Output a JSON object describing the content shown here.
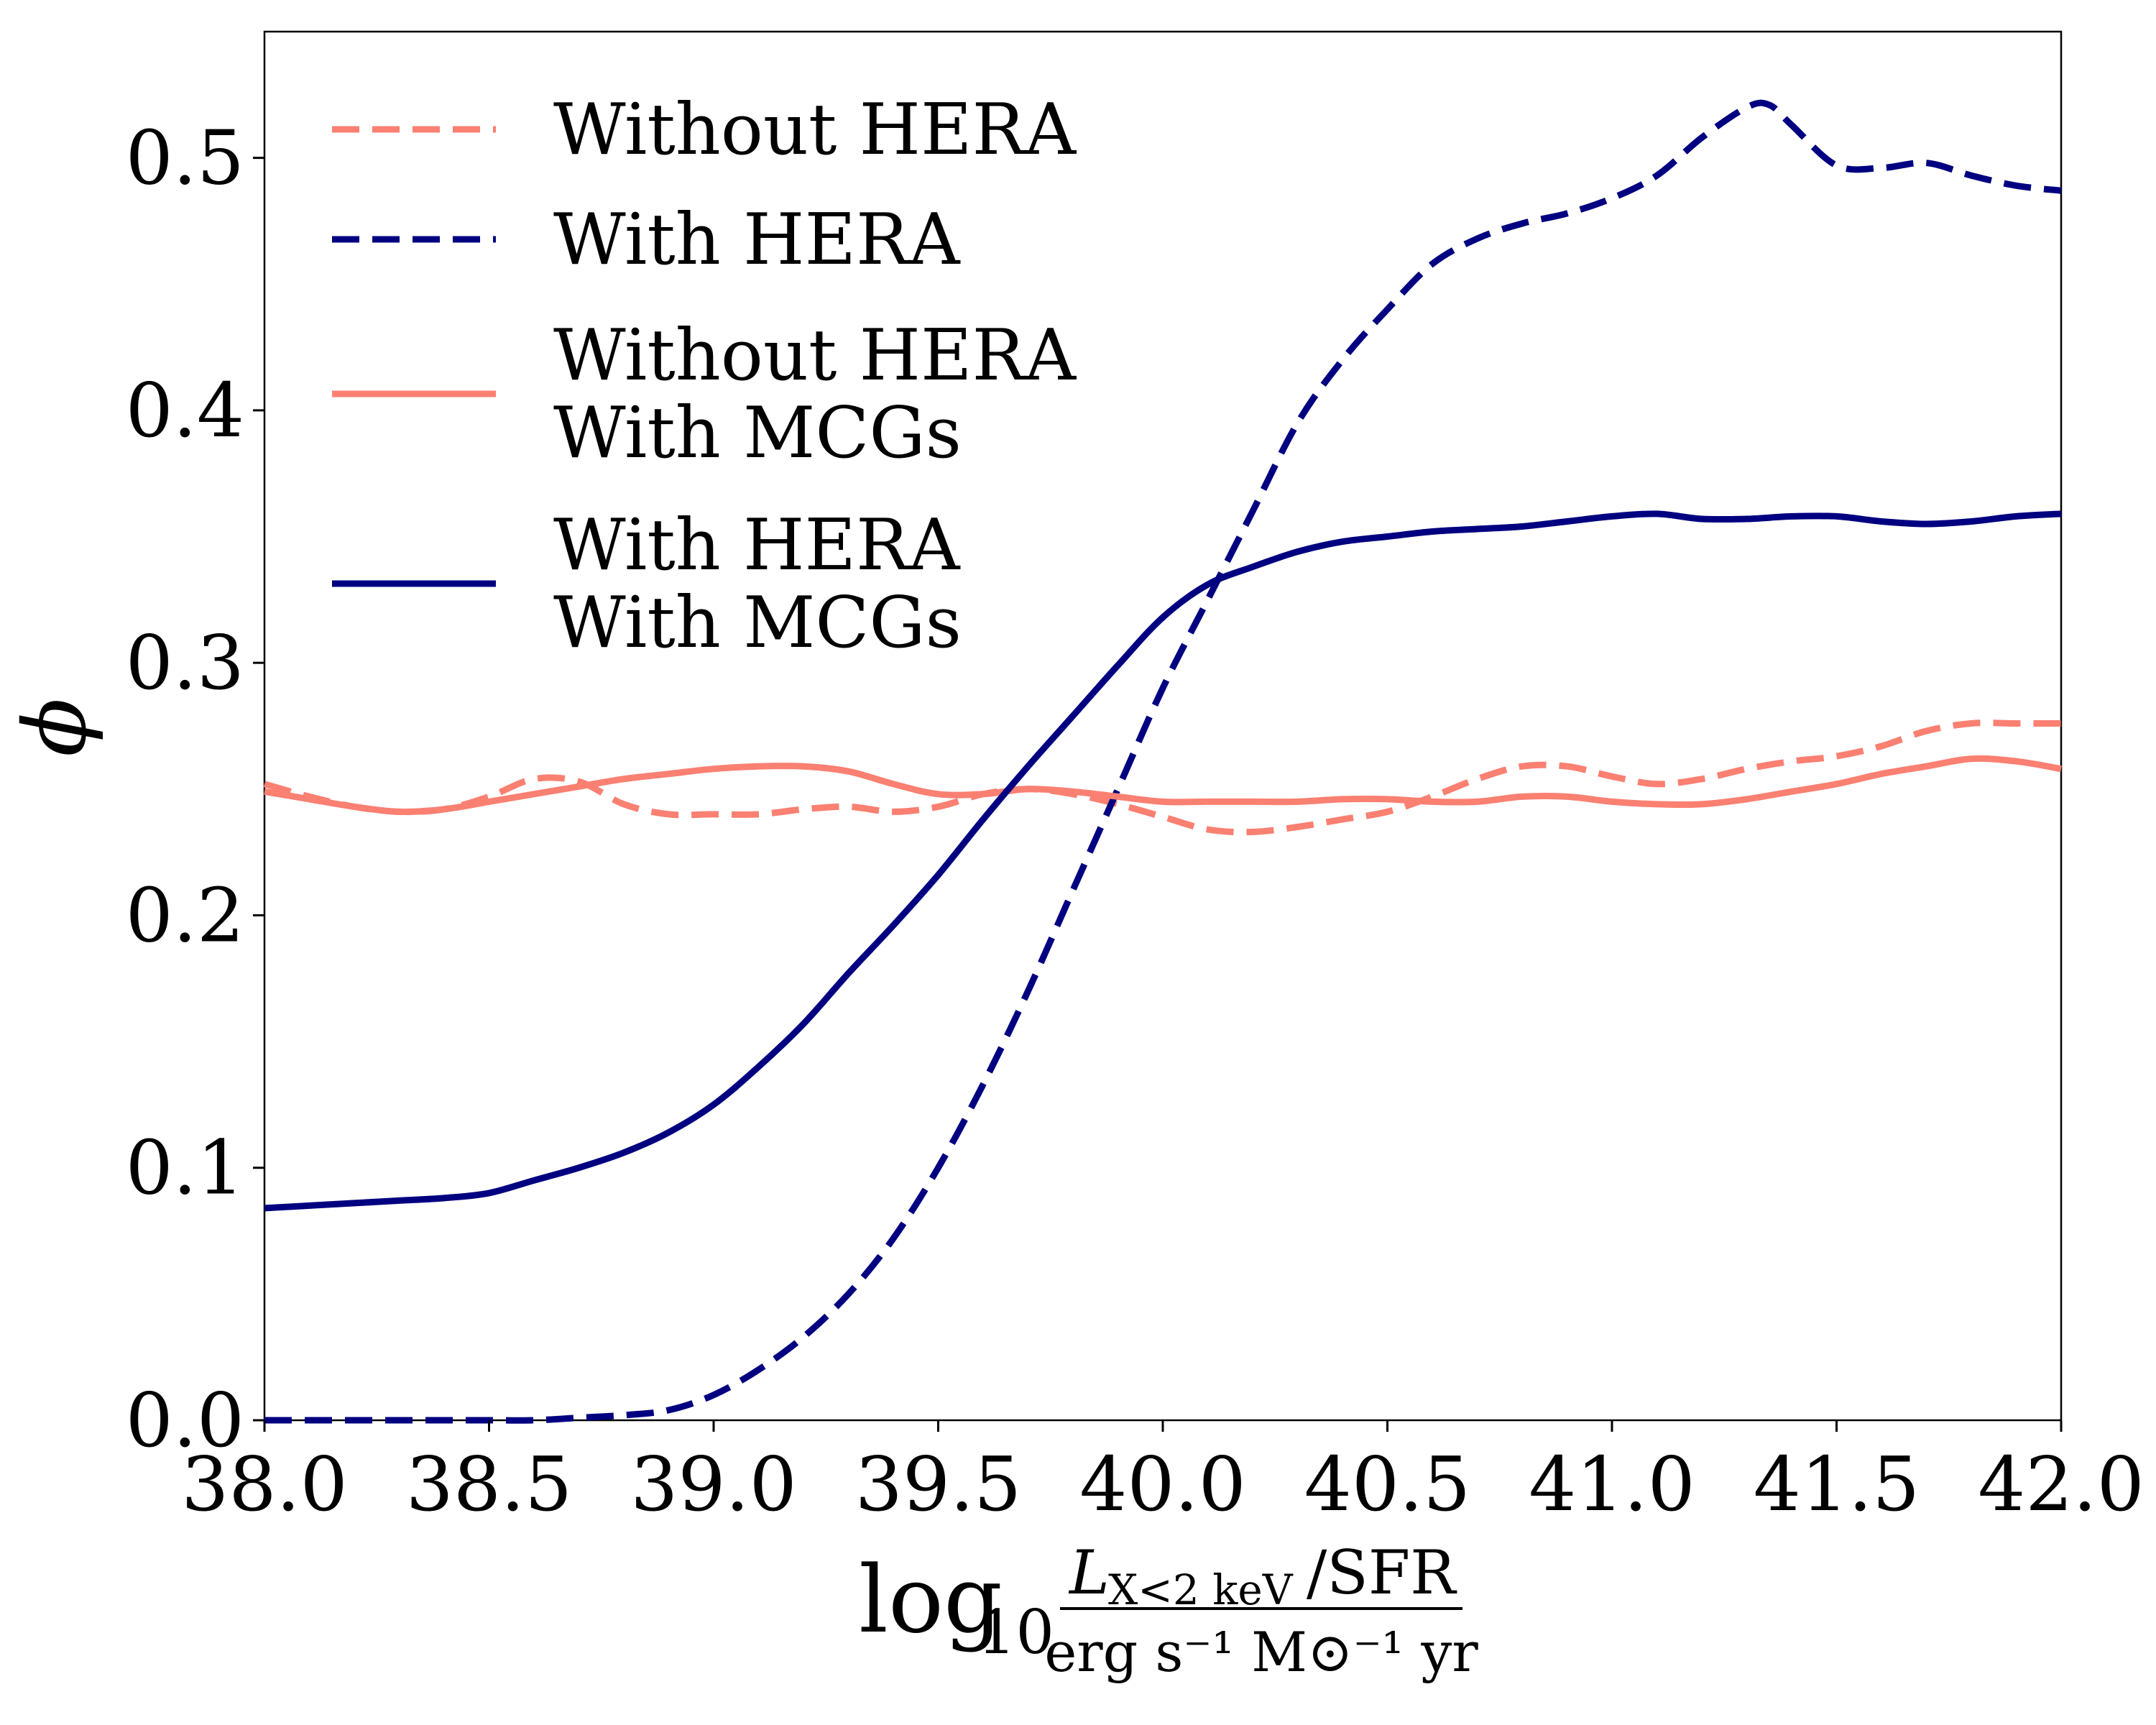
{
  "chart_data": {
    "type": "line",
    "title": "",
    "ylabel": "ϕ",
    "xlabel": {
      "prefix": "log",
      "prefix_sub": "10",
      "numerator_main": "L",
      "numerator_sub": "X<2 keV",
      "numerator_rest": "/SFR",
      "denominator": "erg s⁻¹ M⊙⁻¹ yr"
    },
    "xlim": [
      38.0,
      42.0
    ],
    "ylim": [
      0.0,
      0.55
    ],
    "xticks": [
      38.0,
      38.5,
      39.0,
      39.5,
      40.0,
      40.5,
      41.0,
      41.5,
      42.0
    ],
    "xtick_labels": [
      "38.0",
      "38.5",
      "39.0",
      "39.5",
      "40.0",
      "40.5",
      "41.0",
      "41.5",
      "42.0"
    ],
    "yticks": [
      0.0,
      0.1,
      0.2,
      0.3,
      0.4,
      0.5
    ],
    "ytick_labels": [
      "0.0",
      "0.1",
      "0.2",
      "0.3",
      "0.4",
      "0.5"
    ],
    "grid": false,
    "legend_position": "top-left",
    "series": [
      {
        "id": "without-hera",
        "name": "Without HERA",
        "legend_lines": [
          "Without HERA"
        ],
        "color": "#FA8072",
        "dashed": true,
        "x": [
          38.0,
          38.1,
          38.2,
          38.3,
          38.4,
          38.5,
          38.6,
          38.7,
          38.8,
          38.9,
          39.0,
          39.1,
          39.2,
          39.3,
          39.4,
          39.5,
          39.6,
          39.7,
          39.8,
          39.9,
          40.0,
          40.1,
          40.2,
          40.3,
          40.4,
          40.5,
          40.6,
          40.7,
          40.8,
          40.9,
          41.0,
          41.1,
          41.2,
          41.3,
          41.4,
          41.5,
          41.6,
          41.7,
          41.8,
          41.9,
          42.0
        ],
        "y": [
          0.252,
          0.247,
          0.243,
          0.241,
          0.242,
          0.247,
          0.254,
          0.253,
          0.244,
          0.24,
          0.24,
          0.24,
          0.242,
          0.243,
          0.241,
          0.243,
          0.248,
          0.25,
          0.248,
          0.244,
          0.239,
          0.234,
          0.233,
          0.235,
          0.238,
          0.241,
          0.247,
          0.254,
          0.259,
          0.259,
          0.255,
          0.252,
          0.254,
          0.258,
          0.261,
          0.263,
          0.267,
          0.273,
          0.276,
          0.276,
          0.276
        ]
      },
      {
        "id": "with-hera",
        "name": "With HERA",
        "legend_lines": [
          "With HERA"
        ],
        "color": "#000080",
        "dashed": true,
        "x": [
          38.0,
          38.1,
          38.2,
          38.3,
          38.4,
          38.5,
          38.6,
          38.7,
          38.8,
          38.9,
          39.0,
          39.1,
          39.2,
          39.3,
          39.4,
          39.5,
          39.6,
          39.7,
          39.8,
          39.9,
          40.0,
          40.1,
          40.2,
          40.3,
          40.4,
          40.5,
          40.6,
          40.7,
          40.8,
          40.9,
          41.0,
          41.1,
          41.2,
          41.3,
          41.35,
          41.4,
          41.5,
          41.6,
          41.7,
          41.8,
          41.9,
          42.0
        ],
        "y": [
          0.0,
          0.0,
          0.0,
          0.0,
          0.0,
          0.0,
          0.0,
          0.001,
          0.002,
          0.004,
          0.01,
          0.02,
          0.033,
          0.05,
          0.072,
          0.1,
          0.133,
          0.17,
          0.21,
          0.25,
          0.29,
          0.325,
          0.36,
          0.395,
          0.42,
          0.44,
          0.458,
          0.468,
          0.474,
          0.478,
          0.484,
          0.493,
          0.508,
          0.52,
          0.521,
          0.513,
          0.497,
          0.496,
          0.498,
          0.493,
          0.489,
          0.487
        ]
      },
      {
        "id": "without-hera-with-mcgs",
        "name": "Without HERA With MCGs",
        "legend_lines": [
          "Without HERA",
          "With MCGs"
        ],
        "color": "#FA8072",
        "dashed": false,
        "x": [
          38.0,
          38.1,
          38.2,
          38.3,
          38.4,
          38.5,
          38.6,
          38.7,
          38.8,
          38.9,
          39.0,
          39.1,
          39.2,
          39.3,
          39.4,
          39.5,
          39.6,
          39.7,
          39.8,
          39.9,
          40.0,
          40.1,
          40.2,
          40.3,
          40.4,
          40.5,
          40.6,
          40.7,
          40.8,
          40.9,
          41.0,
          41.1,
          41.2,
          41.3,
          41.4,
          41.5,
          41.6,
          41.7,
          41.8,
          41.9,
          42.0
        ],
        "y": [
          0.249,
          0.246,
          0.243,
          0.241,
          0.242,
          0.245,
          0.248,
          0.251,
          0.254,
          0.256,
          0.258,
          0.259,
          0.259,
          0.257,
          0.252,
          0.248,
          0.248,
          0.25,
          0.249,
          0.247,
          0.245,
          0.245,
          0.245,
          0.245,
          0.246,
          0.246,
          0.245,
          0.245,
          0.247,
          0.247,
          0.245,
          0.244,
          0.244,
          0.246,
          0.249,
          0.252,
          0.256,
          0.259,
          0.262,
          0.261,
          0.258
        ]
      },
      {
        "id": "with-hera-with-mcgs",
        "name": "With HERA With MCGs",
        "legend_lines": [
          "With HERA",
          "With MCGs"
        ],
        "color": "#000080",
        "dashed": false,
        "x": [
          38.0,
          38.1,
          38.2,
          38.3,
          38.4,
          38.5,
          38.6,
          38.7,
          38.8,
          38.9,
          39.0,
          39.1,
          39.2,
          39.3,
          39.4,
          39.5,
          39.6,
          39.7,
          39.8,
          39.9,
          40.0,
          40.1,
          40.2,
          40.3,
          40.4,
          40.5,
          40.6,
          40.7,
          40.8,
          40.9,
          41.0,
          41.1,
          41.2,
          41.3,
          41.4,
          41.5,
          41.6,
          41.7,
          41.8,
          41.9,
          42.0
        ],
        "y": [
          0.084,
          0.085,
          0.086,
          0.087,
          0.088,
          0.09,
          0.095,
          0.1,
          0.106,
          0.114,
          0.125,
          0.14,
          0.157,
          0.177,
          0.196,
          0.216,
          0.238,
          0.259,
          0.279,
          0.299,
          0.318,
          0.331,
          0.338,
          0.344,
          0.348,
          0.35,
          0.352,
          0.353,
          0.354,
          0.356,
          0.358,
          0.359,
          0.357,
          0.357,
          0.358,
          0.358,
          0.356,
          0.355,
          0.356,
          0.358,
          0.359
        ]
      }
    ]
  }
}
